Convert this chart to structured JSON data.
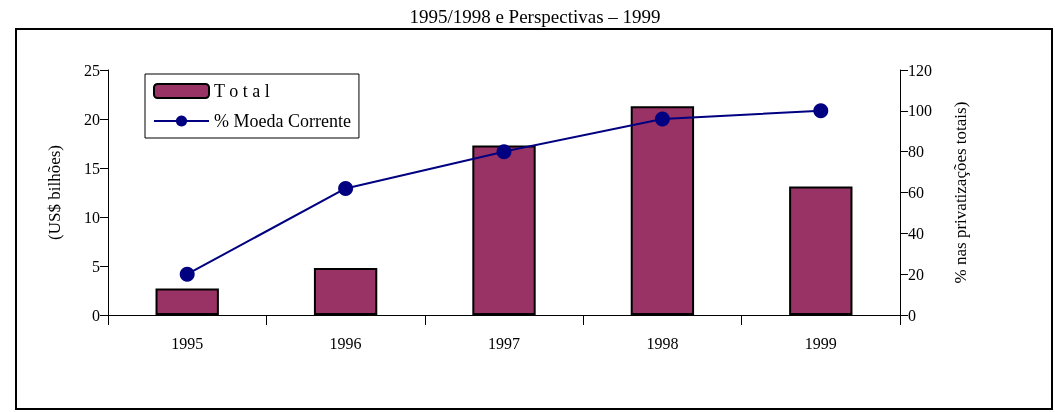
{
  "chart_data": {
    "type": "bar",
    "title": "1995/1998 e Perspectivas – 1999",
    "categories": [
      "1995",
      "1996",
      "1997",
      "1998",
      "1999"
    ],
    "ylabel": "(US$ bilhões)",
    "y2label": "% nas privatizações totais)",
    "ylim": [
      0,
      25
    ],
    "yticks": [
      0,
      5,
      10,
      15,
      20,
      25
    ],
    "y2lim": [
      0,
      120
    ],
    "y2ticks": [
      0,
      20,
      40,
      60,
      80,
      100,
      120
    ],
    "series": [
      {
        "name": "T o t a l",
        "color": "#993366",
        "values": [
          2.7,
          4.8,
          17.3,
          21.3,
          13.1
        ]
      },
      {
        "name": "% Moeda Corrente",
        "type": "line",
        "axis": "y2",
        "color": "#000080",
        "marker": "circle",
        "values": [
          20,
          62,
          80,
          96,
          100
        ]
      }
    ],
    "grid": false,
    "legend": "top left"
  }
}
